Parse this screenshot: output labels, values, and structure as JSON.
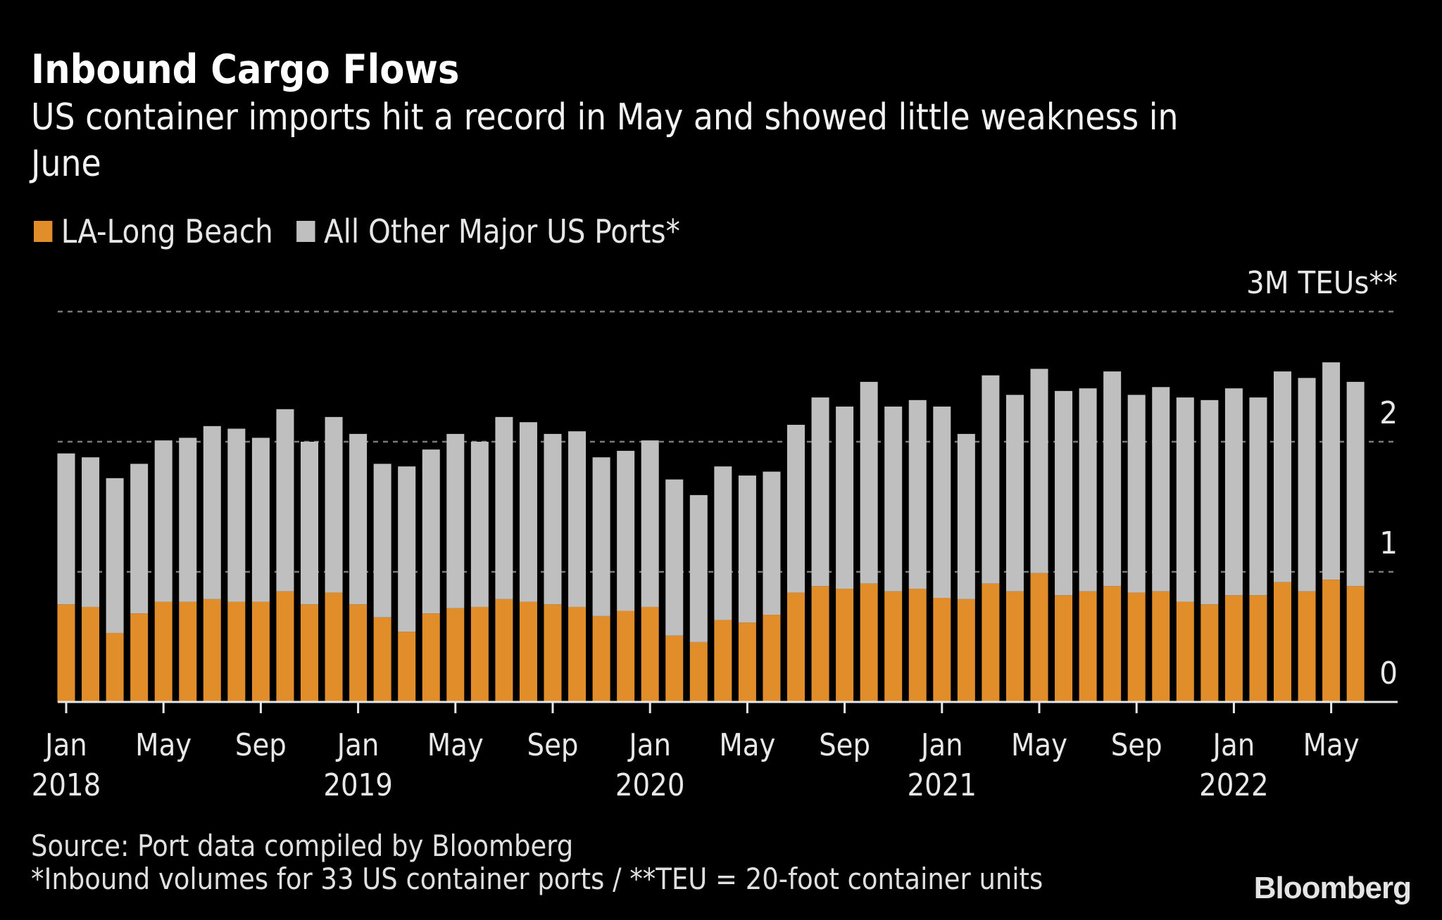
{
  "header": {
    "title": "Inbound Cargo Flows",
    "subtitle_line1": "US container imports hit a record in May and showed little weakness in",
    "subtitle_line2": "June"
  },
  "legend": [
    {
      "label": "LA-Long Beach",
      "color": "#E08D2A"
    },
    {
      "label": "All Other Major US Ports*",
      "color": "#BFBFBF"
    }
  ],
  "footer": {
    "source": "Source: Port data compiled by Bloomberg",
    "note": "*Inbound volumes for 33 US container ports / **TEU = 20-foot container units",
    "brand": "Bloomberg"
  },
  "colors": {
    "background": "#000000",
    "la_long_beach": "#E08D2A",
    "other_ports": "#BFBFBF",
    "gridline": "#7a7a7a",
    "axis": "#e6e6e6"
  },
  "chart_data": {
    "type": "bar",
    "stacked": true,
    "title": "Inbound Cargo Flows",
    "subtitle": "US container imports hit a record in May and showed little weakness in June",
    "xlabel": "",
    "ylabel": "3M TEUs**",
    "y_unit_label": "3M TEUs**",
    "ylim": [
      0,
      3
    ],
    "y_ticks": [
      0,
      1,
      2,
      3
    ],
    "y_tick_labels": [
      "0",
      "1",
      "2",
      "3M TEUs**"
    ],
    "y_axis_side": "right",
    "grid": true,
    "legend_position": "top-left",
    "x_tick_labels": [
      {
        "index": 0,
        "month": "Jan",
        "year": "2018"
      },
      {
        "index": 4,
        "month": "May",
        "year": ""
      },
      {
        "index": 8,
        "month": "Sep",
        "year": ""
      },
      {
        "index": 12,
        "month": "Jan",
        "year": "2019"
      },
      {
        "index": 16,
        "month": "May",
        "year": ""
      },
      {
        "index": 20,
        "month": "Sep",
        "year": ""
      },
      {
        "index": 24,
        "month": "Jan",
        "year": "2020"
      },
      {
        "index": 28,
        "month": "May",
        "year": ""
      },
      {
        "index": 32,
        "month": "Sep",
        "year": ""
      },
      {
        "index": 36,
        "month": "Jan",
        "year": "2021"
      },
      {
        "index": 40,
        "month": "May",
        "year": ""
      },
      {
        "index": 44,
        "month": "Sep",
        "year": ""
      },
      {
        "index": 48,
        "month": "Jan",
        "year": "2022"
      },
      {
        "index": 52,
        "month": "May",
        "year": ""
      }
    ],
    "categories": [
      "2018-01",
      "2018-02",
      "2018-03",
      "2018-04",
      "2018-05",
      "2018-06",
      "2018-07",
      "2018-08",
      "2018-09",
      "2018-10",
      "2018-11",
      "2018-12",
      "2019-01",
      "2019-02",
      "2019-03",
      "2019-04",
      "2019-05",
      "2019-06",
      "2019-07",
      "2019-08",
      "2019-09",
      "2019-10",
      "2019-11",
      "2019-12",
      "2020-01",
      "2020-02",
      "2020-03",
      "2020-04",
      "2020-05",
      "2020-06",
      "2020-07",
      "2020-08",
      "2020-09",
      "2020-10",
      "2020-11",
      "2020-12",
      "2021-01",
      "2021-02",
      "2021-03",
      "2021-04",
      "2021-05",
      "2021-06",
      "2021-07",
      "2021-08",
      "2021-09",
      "2021-10",
      "2021-11",
      "2021-12",
      "2022-01",
      "2022-02",
      "2022-03",
      "2022-04",
      "2022-05",
      "2022-06"
    ],
    "series": [
      {
        "name": "LA-Long Beach",
        "color": "#E08D2A",
        "values": [
          0.75,
          0.73,
          0.53,
          0.68,
          0.77,
          0.77,
          0.79,
          0.77,
          0.77,
          0.85,
          0.75,
          0.84,
          0.75,
          0.65,
          0.54,
          0.68,
          0.72,
          0.73,
          0.79,
          0.77,
          0.75,
          0.73,
          0.66,
          0.7,
          0.73,
          0.51,
          0.46,
          0.63,
          0.61,
          0.67,
          0.84,
          0.89,
          0.87,
          0.91,
          0.85,
          0.87,
          0.8,
          0.79,
          0.91,
          0.85,
          0.99,
          0.82,
          0.85,
          0.89,
          0.84,
          0.85,
          0.77,
          0.75,
          0.82,
          0.82,
          0.92,
          0.85,
          0.94,
          0.89
        ]
      },
      {
        "name": "All Other Major US Ports*",
        "color": "#BFBFBF",
        "values": [
          1.16,
          1.15,
          1.19,
          1.15,
          1.24,
          1.26,
          1.33,
          1.33,
          1.26,
          1.4,
          1.25,
          1.35,
          1.31,
          1.18,
          1.27,
          1.26,
          1.34,
          1.27,
          1.4,
          1.38,
          1.31,
          1.35,
          1.22,
          1.23,
          1.28,
          1.2,
          1.13,
          1.18,
          1.13,
          1.1,
          1.29,
          1.45,
          1.4,
          1.55,
          1.42,
          1.45,
          1.47,
          1.27,
          1.6,
          1.51,
          1.57,
          1.57,
          1.56,
          1.65,
          1.52,
          1.57,
          1.57,
          1.57,
          1.59,
          1.52,
          1.62,
          1.64,
          1.67,
          1.57
        ]
      }
    ],
    "totals": [
      1.91,
      1.88,
      1.72,
      1.83,
      2.01,
      2.03,
      2.12,
      2.1,
      2.03,
      2.25,
      2.0,
      2.19,
      2.06,
      1.83,
      1.81,
      1.94,
      2.06,
      2.0,
      2.19,
      2.15,
      2.06,
      2.08,
      1.88,
      1.93,
      2.01,
      1.71,
      1.59,
      1.81,
      1.74,
      1.77,
      2.13,
      2.34,
      2.27,
      2.46,
      2.27,
      2.32,
      2.27,
      2.06,
      2.51,
      2.36,
      2.56,
      2.39,
      2.41,
      2.54,
      2.36,
      2.42,
      2.34,
      2.32,
      2.41,
      2.34,
      2.54,
      2.49,
      2.61,
      2.46
    ]
  }
}
